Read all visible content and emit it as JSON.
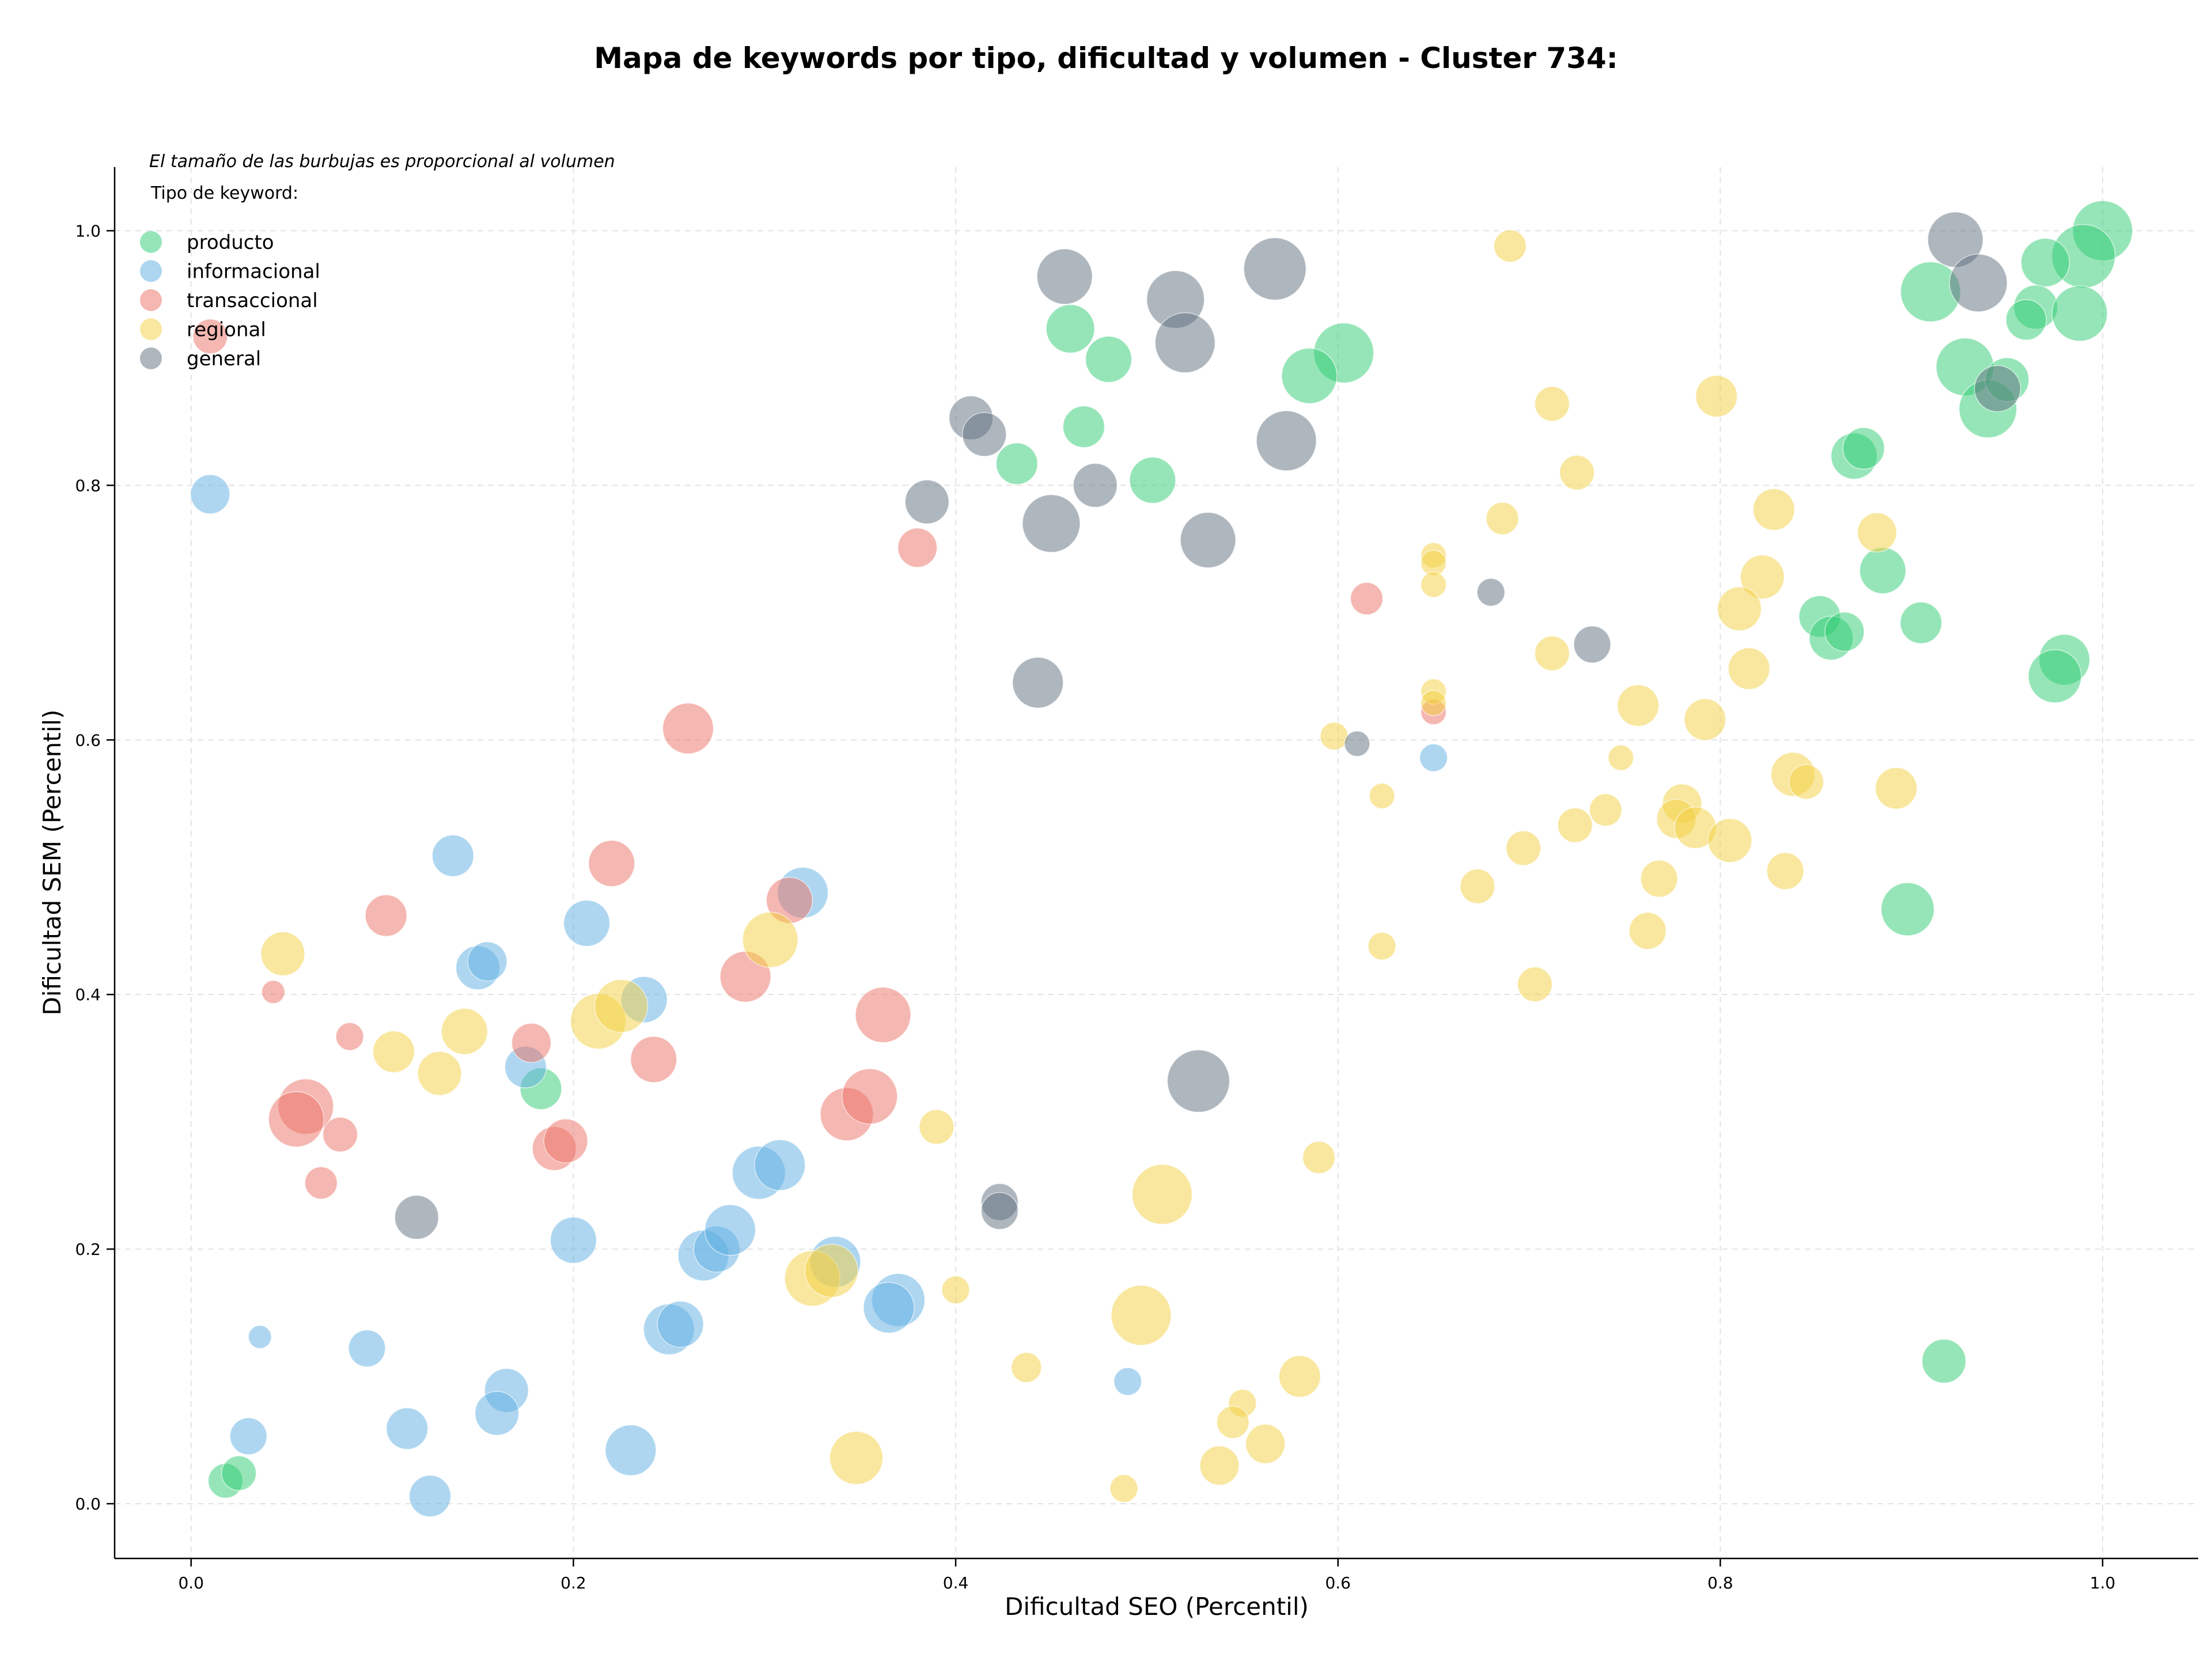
{
  "chart_data": {
    "type": "scatter",
    "title": "Mapa de keywords por tipo, dificultad y volumen - Cluster 734:",
    "xlabel": "Dificultad SEO (Percentil)",
    "ylabel": "Dificultad SEM (Percentil)",
    "xlim": [
      -0.04,
      1.05
    ],
    "ylim": [
      -0.043,
      1.05
    ],
    "xticks": [
      "0.0",
      "0.2",
      "0.4",
      "0.6",
      "0.8",
      "1.0"
    ],
    "yticks": [
      "0.0",
      "0.2",
      "0.4",
      "0.6",
      "0.8",
      "1.0"
    ],
    "grid": true,
    "note": "El tamaño de las burbujas es proporcional al volumen",
    "legend": {
      "title": "Tipo de keyword:",
      "placement": "top-left"
    },
    "series": [
      {
        "name": "producto",
        "color": "#2ecc71",
        "points": [
          [
            1.0,
            1.0,
            52
          ],
          [
            0.99,
            0.98,
            55
          ],
          [
            0.97,
            0.975,
            42
          ],
          [
            0.965,
            0.94,
            38
          ],
          [
            0.96,
            0.93,
            35
          ],
          [
            0.988,
            0.935,
            48
          ],
          [
            0.91,
            0.952,
            52
          ],
          [
            0.928,
            0.893,
            50
          ],
          [
            0.94,
            0.86,
            50
          ],
          [
            0.95,
            0.883,
            38
          ],
          [
            0.87,
            0.823,
            40
          ],
          [
            0.875,
            0.829,
            36
          ],
          [
            0.885,
            0.733,
            40
          ],
          [
            0.905,
            0.692,
            36
          ],
          [
            0.852,
            0.697,
            36
          ],
          [
            0.858,
            0.68,
            38
          ],
          [
            0.865,
            0.685,
            34
          ],
          [
            0.98,
            0.663,
            44
          ],
          [
            0.975,
            0.65,
            46
          ],
          [
            0.898,
            0.467,
            46
          ],
          [
            0.917,
            0.112,
            38
          ],
          [
            0.603,
            0.904,
            52
          ],
          [
            0.585,
            0.886,
            48
          ],
          [
            0.46,
            0.923,
            42
          ],
          [
            0.48,
            0.899,
            40
          ],
          [
            0.467,
            0.846,
            36
          ],
          [
            0.432,
            0.817,
            36
          ],
          [
            0.503,
            0.804,
            40
          ],
          [
            0.183,
            0.326,
            36
          ],
          [
            0.018,
            0.018,
            30
          ],
          [
            0.025,
            0.024,
            30
          ]
        ]
      },
      {
        "name": "informacional",
        "color": "#5dade2",
        "points": [
          [
            0.01,
            0.793,
            34
          ],
          [
            0.137,
            0.509,
            36
          ],
          [
            0.15,
            0.421,
            38
          ],
          [
            0.155,
            0.426,
            34
          ],
          [
            0.207,
            0.456,
            40
          ],
          [
            0.237,
            0.396,
            40
          ],
          [
            0.175,
            0.343,
            36
          ],
          [
            0.32,
            0.48,
            44
          ],
          [
            0.2,
            0.207,
            40
          ],
          [
            0.268,
            0.195,
            44
          ],
          [
            0.275,
            0.2,
            40
          ],
          [
            0.282,
            0.215,
            44
          ],
          [
            0.297,
            0.26,
            46
          ],
          [
            0.308,
            0.266,
            44
          ],
          [
            0.337,
            0.19,
            44
          ],
          [
            0.37,
            0.16,
            46
          ],
          [
            0.365,
            0.154,
            44
          ],
          [
            0.25,
            0.137,
            44
          ],
          [
            0.256,
            0.141,
            40
          ],
          [
            0.23,
            0.042,
            44
          ],
          [
            0.165,
            0.089,
            38
          ],
          [
            0.16,
            0.071,
            38
          ],
          [
            0.113,
            0.059,
            36
          ],
          [
            0.125,
            0.006,
            36
          ],
          [
            0.092,
            0.122,
            32
          ],
          [
            0.03,
            0.053,
            32
          ],
          [
            0.036,
            0.131,
            20
          ],
          [
            0.49,
            0.096,
            24
          ],
          [
            0.65,
            0.586,
            24
          ]
        ]
      },
      {
        "name": "transaccional",
        "color": "#ec7063",
        "points": [
          [
            0.01,
            0.917,
            30
          ],
          [
            0.38,
            0.751,
            34
          ],
          [
            0.26,
            0.609,
            44
          ],
          [
            0.22,
            0.503,
            40
          ],
          [
            0.102,
            0.462,
            36
          ],
          [
            0.313,
            0.474,
            40
          ],
          [
            0.29,
            0.414,
            44
          ],
          [
            0.362,
            0.384,
            48
          ],
          [
            0.242,
            0.349,
            40
          ],
          [
            0.178,
            0.362,
            34
          ],
          [
            0.043,
            0.402,
            20
          ],
          [
            0.083,
            0.367,
            24
          ],
          [
            0.06,
            0.312,
            48
          ],
          [
            0.055,
            0.302,
            48
          ],
          [
            0.078,
            0.29,
            30
          ],
          [
            0.068,
            0.252,
            28
          ],
          [
            0.19,
            0.279,
            38
          ],
          [
            0.196,
            0.285,
            38
          ],
          [
            0.343,
            0.306,
            46
          ],
          [
            0.355,
            0.32,
            48
          ],
          [
            0.615,
            0.711,
            28
          ],
          [
            0.65,
            0.622,
            22
          ]
        ]
      },
      {
        "name": "regional",
        "color": "#f4d03f",
        "points": [
          [
            0.69,
            0.988,
            28
          ],
          [
            0.712,
            0.864,
            30
          ],
          [
            0.798,
            0.87,
            36
          ],
          [
            0.725,
            0.81,
            30
          ],
          [
            0.686,
            0.774,
            28
          ],
          [
            0.65,
            0.745,
            22
          ],
          [
            0.65,
            0.739,
            22
          ],
          [
            0.65,
            0.722,
            22
          ],
          [
            0.828,
            0.781,
            36
          ],
          [
            0.882,
            0.763,
            34
          ],
          [
            0.822,
            0.728,
            38
          ],
          [
            0.81,
            0.703,
            38
          ],
          [
            0.712,
            0.668,
            30
          ],
          [
            0.815,
            0.656,
            36
          ],
          [
            0.65,
            0.638,
            22
          ],
          [
            0.65,
            0.629,
            22
          ],
          [
            0.757,
            0.627,
            36
          ],
          [
            0.792,
            0.616,
            36
          ],
          [
            0.598,
            0.603,
            24
          ],
          [
            0.623,
            0.556,
            22
          ],
          [
            0.748,
            0.586,
            22
          ],
          [
            0.838,
            0.573,
            38
          ],
          [
            0.845,
            0.567,
            30
          ],
          [
            0.892,
            0.562,
            36
          ],
          [
            0.74,
            0.545,
            28
          ],
          [
            0.724,
            0.533,
            30
          ],
          [
            0.78,
            0.55,
            34
          ],
          [
            0.777,
            0.538,
            34
          ],
          [
            0.787,
            0.531,
            36
          ],
          [
            0.805,
            0.521,
            38
          ],
          [
            0.697,
            0.515,
            30
          ],
          [
            0.768,
            0.491,
            32
          ],
          [
            0.834,
            0.497,
            32
          ],
          [
            0.673,
            0.485,
            30
          ],
          [
            0.762,
            0.45,
            32
          ],
          [
            0.623,
            0.438,
            24
          ],
          [
            0.703,
            0.408,
            30
          ],
          [
            0.048,
            0.432,
            38
          ],
          [
            0.143,
            0.371,
            40
          ],
          [
            0.106,
            0.355,
            36
          ],
          [
            0.13,
            0.338,
            38
          ],
          [
            0.213,
            0.379,
            48
          ],
          [
            0.225,
            0.391,
            46
          ],
          [
            0.303,
            0.443,
            48
          ],
          [
            0.39,
            0.296,
            30
          ],
          [
            0.59,
            0.272,
            28
          ],
          [
            0.508,
            0.243,
            52
          ],
          [
            0.325,
            0.177,
            48
          ],
          [
            0.335,
            0.183,
            46
          ],
          [
            0.4,
            0.168,
            24
          ],
          [
            0.497,
            0.148,
            52
          ],
          [
            0.437,
            0.107,
            26
          ],
          [
            0.58,
            0.1,
            36
          ],
          [
            0.55,
            0.079,
            24
          ],
          [
            0.545,
            0.064,
            28
          ],
          [
            0.562,
            0.047,
            34
          ],
          [
            0.538,
            0.03,
            34
          ],
          [
            0.348,
            0.036,
            46
          ],
          [
            0.488,
            0.012,
            24
          ]
        ]
      },
      {
        "name": "general",
        "color": "#5d6d7e",
        "points": [
          [
            0.457,
            0.964,
            48
          ],
          [
            0.567,
            0.97,
            54
          ],
          [
            0.515,
            0.946,
            50
          ],
          [
            0.52,
            0.912,
            52
          ],
          [
            0.923,
            0.993,
            48
          ],
          [
            0.935,
            0.959,
            50
          ],
          [
            0.945,
            0.876,
            40
          ],
          [
            0.408,
            0.853,
            38
          ],
          [
            0.415,
            0.84,
            38
          ],
          [
            0.573,
            0.835,
            52
          ],
          [
            0.385,
            0.787,
            38
          ],
          [
            0.473,
            0.8,
            38
          ],
          [
            0.45,
            0.77,
            50
          ],
          [
            0.532,
            0.757,
            48
          ],
          [
            0.443,
            0.645,
            44
          ],
          [
            0.68,
            0.716,
            24
          ],
          [
            0.733,
            0.675,
            32
          ],
          [
            0.61,
            0.597,
            22
          ],
          [
            0.527,
            0.332,
            54
          ],
          [
            0.118,
            0.225,
            38
          ],
          [
            0.423,
            0.237,
            32
          ],
          [
            0.423,
            0.23,
            32
          ]
        ]
      }
    ]
  }
}
